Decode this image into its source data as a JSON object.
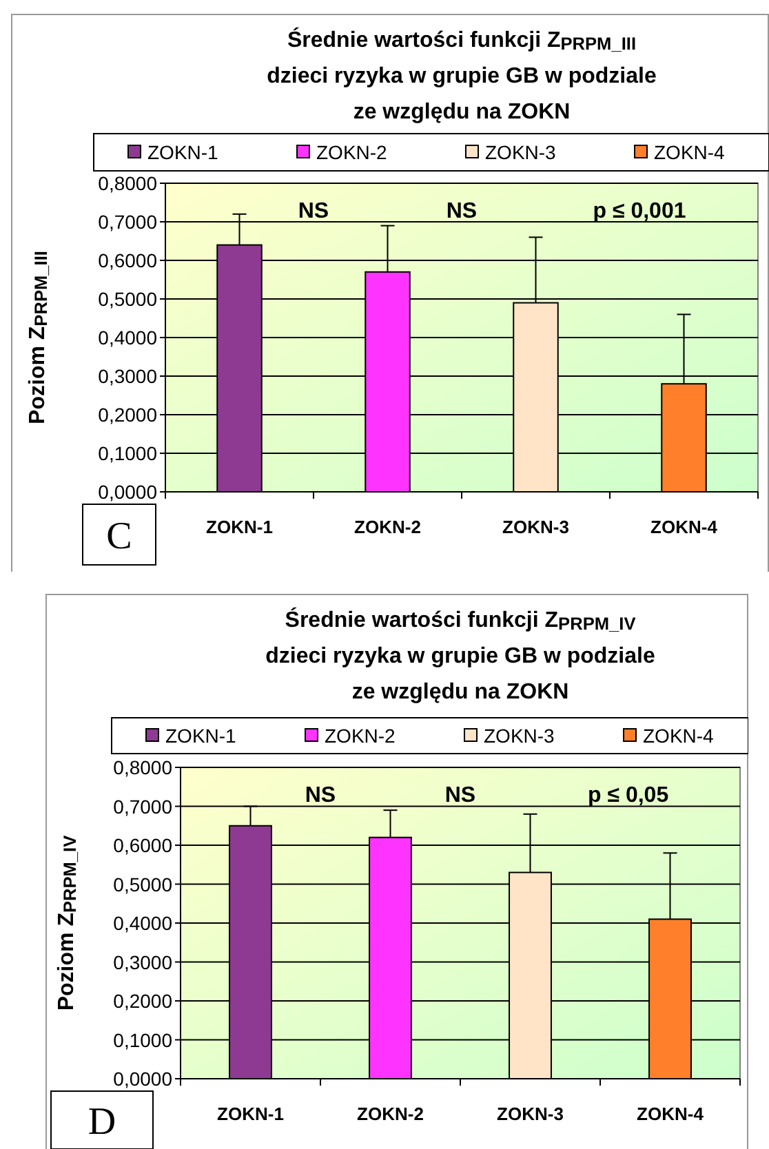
{
  "chart_data": [
    {
      "type": "bar",
      "title": "Średnie wartości funkcji Z$_{PRPM_III}$\ndzieci ryzyka w grupie GB w podziale\nze względu na ZOKN",
      "ylabel": "Poziom Z$_{PRPM_III}$",
      "categories": [
        "ZOKN-1",
        "ZOKN-2",
        "ZOKN-3",
        "ZOKN-4"
      ],
      "series": [
        {
          "name": "ZOKN-1",
          "color": "#8e3a92",
          "values": [
            0.64,
            null,
            null,
            null
          ],
          "errors": [
            [
              0.64,
              0.72
            ],
            null,
            null,
            null
          ]
        },
        {
          "name": "ZOKN-2",
          "color": "#ff33ff",
          "values": [
            null,
            0.57,
            null,
            null
          ],
          "errors": [
            null,
            [
              0.57,
              0.69
            ],
            null,
            null
          ]
        },
        {
          "name": "ZOKN-3",
          "color": "#ffe4c8",
          "values": [
            null,
            null,
            0.49,
            null
          ],
          "errors": [
            null,
            null,
            [
              0.49,
              0.66
            ],
            null
          ]
        },
        {
          "name": "ZOKN-4",
          "color": "#ff7f2a",
          "values": [
            null,
            null,
            null,
            0.28
          ],
          "errors": [
            null,
            null,
            null,
            [
              0.28,
              0.46
            ]
          ]
        }
      ],
      "ylim": [
        0,
        0.8
      ],
      "yticks": [
        {
          "value": 0,
          "label": "0,0000"
        },
        {
          "value": 0.1,
          "label": "0,1000"
        },
        {
          "value": 0.2,
          "label": "0,2000"
        },
        {
          "value": 0.3,
          "label": "0,3000"
        },
        {
          "value": 0.4,
          "label": "0,4000"
        },
        {
          "value": 0.5,
          "label": "0,5000"
        },
        {
          "value": 0.6,
          "label": "0,6000"
        },
        {
          "value": 0.7,
          "label": "0,7000"
        },
        {
          "value": 0.8,
          "label": "0,8000"
        }
      ],
      "grid": "y",
      "legend": "top",
      "annotations": [
        "NS",
        "NS",
        "p ≤ 0,001",
        "C"
      ]
    },
    {
      "type": "bar",
      "title": "Średnie wartości funkcji Z$_{PRPM_IV}$\ndzieci ryzyka w grupie GB w podziale\nze względu na ZOKN",
      "ylabel": "Poziom Z$_{PRPM_IV}$",
      "categories": [
        "ZOKN-1",
        "ZOKN-2",
        "ZOKN-3",
        "ZOKN-4"
      ],
      "series": [
        {
          "name": "ZOKN-1",
          "color": "#8e3a92",
          "values": [
            0.65,
            null,
            null,
            null
          ],
          "errors": [
            [
              0.65,
              0.7
            ],
            null,
            null,
            null
          ]
        },
        {
          "name": "ZOKN-2",
          "color": "#ff33ff",
          "values": [
            null,
            0.62,
            null,
            null
          ],
          "errors": [
            null,
            [
              0.62,
              0.69
            ],
            null,
            null
          ]
        },
        {
          "name": "ZOKN-3",
          "color": "#ffe4c8",
          "values": [
            null,
            null,
            0.53,
            null
          ],
          "errors": [
            null,
            null,
            [
              0.53,
              0.68
            ],
            null
          ]
        },
        {
          "name": "ZOKN-4",
          "color": "#ff7f2a",
          "values": [
            null,
            null,
            null,
            0.41
          ],
          "errors": [
            null,
            null,
            null,
            [
              0.41,
              0.58
            ]
          ]
        }
      ],
      "ylim": [
        0,
        0.8
      ],
      "yticks": [
        {
          "value": 0,
          "label": "0,0000"
        },
        {
          "value": 0.1,
          "label": "0,1000"
        },
        {
          "value": 0.2,
          "label": "0,2000"
        },
        {
          "value": 0.3,
          "label": "0,3000"
        },
        {
          "value": 0.4,
          "label": "0,4000"
        },
        {
          "value": 0.5,
          "label": "0,5000"
        },
        {
          "value": 0.6,
          "label": "0,6000"
        },
        {
          "value": 0.7,
          "label": "0,7000"
        },
        {
          "value": 0.8,
          "label": "0,8000"
        }
      ],
      "grid": "y",
      "legend": "top",
      "annotations": [
        "NS",
        "NS",
        "p ≤ 0,05",
        "D"
      ]
    }
  ]
}
